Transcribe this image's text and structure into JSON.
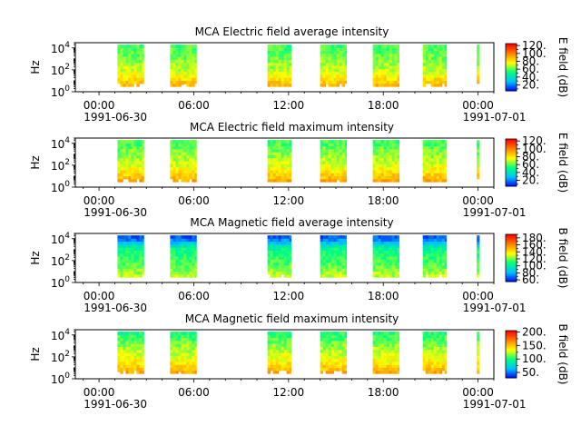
{
  "figure": {
    "colormap": [
      "#0000ff",
      "#00c0ff",
      "#00ff80",
      "#ffff00",
      "#ff8000",
      "#ff0000"
    ],
    "background": "#ffffff"
  },
  "chart_data": [
    {
      "type": "heatmap",
      "title": "MCA  Electric field average intensity",
      "ylabel": "Hz",
      "yscale": "log",
      "ylim": [
        1,
        30000
      ],
      "yticks": [
        "10^0",
        "10^2",
        "10^4"
      ],
      "xticks": [
        {
          "time": "1991-06-30T00:00",
          "label": "00:00",
          "date_label": "1991-06-30"
        },
        {
          "time": "1991-06-30T06:00",
          "label": "06:00",
          "date_label": ""
        },
        {
          "time": "1991-06-30T12:00",
          "label": "12:00",
          "date_label": ""
        },
        {
          "time": "1991-06-30T18:00",
          "label": "18:00",
          "date_label": ""
        },
        {
          "time": "1991-07-01T00:00",
          "label": "00:00",
          "date_label": "1991-07-01"
        }
      ],
      "xlim": [
        "1991-06-29T22:30",
        "1991-07-01T01:00"
      ],
      "colorbar": {
        "label": "E field (dB)",
        "ticks": [
          20,
          40,
          60,
          80,
          100,
          120
        ],
        "tick_labels": [
          "20.",
          "40.",
          "60.",
          "80.",
          "100.",
          "120."
        ],
        "range": [
          5,
          125
        ]
      },
      "data_segments": [
        {
          "start": "1991-06-30T01:10",
          "end": "1991-06-30T02:50"
        },
        {
          "start": "1991-06-30T04:30",
          "end": "1991-06-30T06:10"
        },
        {
          "start": "1991-06-30T10:40",
          "end": "1991-06-30T12:10"
        },
        {
          "start": "1991-06-30T14:00",
          "end": "1991-06-30T15:40"
        },
        {
          "start": "1991-06-30T17:20",
          "end": "1991-06-30T19:00"
        },
        {
          "start": "1991-06-30T20:30",
          "end": "1991-06-30T22:00"
        },
        {
          "start": "1991-06-30T23:55",
          "end": "1991-07-01T00:05"
        }
      ],
      "frequency_extent_hz": [
        3,
        20000
      ],
      "intensity_profile": {
        "freq_decades": [
          0.5,
          1,
          1.5,
          2,
          2.5,
          3,
          3.5,
          4,
          4.3
        ],
        "values_db": [
          92,
          85,
          78,
          72,
          68,
          65,
          62,
          60,
          58
        ]
      }
    },
    {
      "type": "heatmap",
      "title": "MCA  Electric field maximum intensity",
      "ylabel": "Hz",
      "yscale": "log",
      "ylim": [
        1,
        30000
      ],
      "yticks": [
        "10^0",
        "10^2",
        "10^4"
      ],
      "xticks": [
        {
          "time": "1991-06-30T00:00",
          "label": "00:00",
          "date_label": "1991-06-30"
        },
        {
          "time": "1991-06-30T06:00",
          "label": "06:00",
          "date_label": ""
        },
        {
          "time": "1991-06-30T12:00",
          "label": "12:00",
          "date_label": ""
        },
        {
          "time": "1991-06-30T18:00",
          "label": "18:00",
          "date_label": ""
        },
        {
          "time": "1991-07-01T00:00",
          "label": "00:00",
          "date_label": "1991-07-01"
        }
      ],
      "xlim": [
        "1991-06-29T22:30",
        "1991-07-01T01:00"
      ],
      "colorbar": {
        "label": "E field (dB)",
        "ticks": [
          20,
          40,
          60,
          80,
          100,
          120
        ],
        "tick_labels": [
          "20.",
          "40.",
          "60.",
          "80.",
          "100.",
          "120."
        ],
        "range": [
          5,
          125
        ]
      },
      "data_segments": [
        {
          "start": "1991-06-30T01:10",
          "end": "1991-06-30T02:50"
        },
        {
          "start": "1991-06-30T04:30",
          "end": "1991-06-30T06:10"
        },
        {
          "start": "1991-06-30T10:40",
          "end": "1991-06-30T12:10"
        },
        {
          "start": "1991-06-30T14:00",
          "end": "1991-06-30T15:40"
        },
        {
          "start": "1991-06-30T17:20",
          "end": "1991-06-30T19:00"
        },
        {
          "start": "1991-06-30T20:30",
          "end": "1991-06-30T22:00"
        },
        {
          "start": "1991-06-30T23:55",
          "end": "1991-07-01T00:05"
        }
      ],
      "frequency_extent_hz": [
        3,
        20000
      ],
      "intensity_profile": {
        "freq_decades": [
          0.5,
          1,
          1.5,
          2,
          2.5,
          3,
          3.5,
          4,
          4.3
        ],
        "values_db": [
          95,
          88,
          80,
          74,
          70,
          66,
          63,
          60,
          58
        ]
      }
    },
    {
      "type": "heatmap",
      "title": "MCA  Magnetic field average intensity",
      "ylabel": "Hz",
      "yscale": "log",
      "ylim": [
        1,
        30000
      ],
      "yticks": [
        "10^0",
        "10^2",
        "10^4"
      ],
      "xticks": [
        {
          "time": "1991-06-30T00:00",
          "label": "00:00",
          "date_label": "1991-06-30"
        },
        {
          "time": "1991-06-30T06:00",
          "label": "06:00",
          "date_label": ""
        },
        {
          "time": "1991-06-30T12:00",
          "label": "12:00",
          "date_label": ""
        },
        {
          "time": "1991-06-30T18:00",
          "label": "18:00",
          "date_label": ""
        },
        {
          "time": "1991-07-01T00:00",
          "label": "00:00",
          "date_label": "1991-07-01"
        }
      ],
      "xlim": [
        "1991-06-29T22:30",
        "1991-07-01T01:00"
      ],
      "colorbar": {
        "label": "B field (dB)",
        "ticks": [
          60,
          80,
          100,
          120,
          140,
          160,
          180
        ],
        "tick_labels": [
          "60.",
          "80.",
          "100.",
          "120.",
          "140.",
          "160.",
          "180."
        ],
        "range": [
          55,
          190
        ]
      },
      "data_segments": [
        {
          "start": "1991-06-30T01:10",
          "end": "1991-06-30T02:50"
        },
        {
          "start": "1991-06-30T04:30",
          "end": "1991-06-30T06:10"
        },
        {
          "start": "1991-06-30T10:40",
          "end": "1991-06-30T12:10"
        },
        {
          "start": "1991-06-30T14:00",
          "end": "1991-06-30T15:40"
        },
        {
          "start": "1991-06-30T17:20",
          "end": "1991-06-30T19:00"
        },
        {
          "start": "1991-06-30T20:30",
          "end": "1991-06-30T22:00"
        },
        {
          "start": "1991-06-30T23:55",
          "end": "1991-07-01T00:05"
        }
      ],
      "frequency_extent_hz": [
        3,
        20000
      ],
      "intensity_profile": {
        "freq_decades": [
          0.5,
          1,
          1.5,
          2,
          2.5,
          3,
          3.3,
          3.7,
          4,
          4.3
        ],
        "values_db": [
          130,
          125,
          120,
          115,
          112,
          108,
          100,
          82,
          70,
          65
        ]
      }
    },
    {
      "type": "heatmap",
      "title": "MCA  Magnetic field maximum intensity",
      "ylabel": "Hz",
      "yscale": "log",
      "ylim": [
        1,
        30000
      ],
      "yticks": [
        "10^0",
        "10^2",
        "10^4"
      ],
      "xticks": [
        {
          "time": "1991-06-30T00:00",
          "label": "00:00",
          "date_label": "1991-06-30"
        },
        {
          "time": "1991-06-30T06:00",
          "label": "06:00",
          "date_label": ""
        },
        {
          "time": "1991-06-30T12:00",
          "label": "12:00",
          "date_label": ""
        },
        {
          "time": "1991-06-30T18:00",
          "label": "18:00",
          "date_label": ""
        },
        {
          "time": "1991-07-01T00:00",
          "label": "00:00",
          "date_label": "1991-07-01"
        }
      ],
      "xlim": [
        "1991-06-29T22:30",
        "1991-07-01T01:00"
      ],
      "colorbar": {
        "label": "B field (dB)",
        "ticks": [
          50,
          100,
          150,
          200
        ],
        "tick_labels": [
          "50.",
          "100.",
          "150.",
          "200."
        ],
        "range": [
          30,
          205
        ]
      },
      "data_segments": [
        {
          "start": "1991-06-30T01:10",
          "end": "1991-06-30T02:50"
        },
        {
          "start": "1991-06-30T04:30",
          "end": "1991-06-30T06:10"
        },
        {
          "start": "1991-06-30T10:40",
          "end": "1991-06-30T12:10"
        },
        {
          "start": "1991-06-30T14:00",
          "end": "1991-06-30T15:40"
        },
        {
          "start": "1991-06-30T17:20",
          "end": "1991-06-30T19:00"
        },
        {
          "start": "1991-06-30T20:30",
          "end": "1991-06-30T22:00"
        },
        {
          "start": "1991-06-30T23:55",
          "end": "1991-07-01T00:05"
        }
      ],
      "frequency_extent_hz": [
        3,
        20000
      ],
      "intensity_profile": {
        "freq_decades": [
          0.5,
          1,
          1.5,
          2,
          2.5,
          3,
          3.5,
          4,
          4.3
        ],
        "values_db": [
          160,
          150,
          140,
          132,
          126,
          120,
          112,
          105,
          100
        ]
      }
    }
  ]
}
